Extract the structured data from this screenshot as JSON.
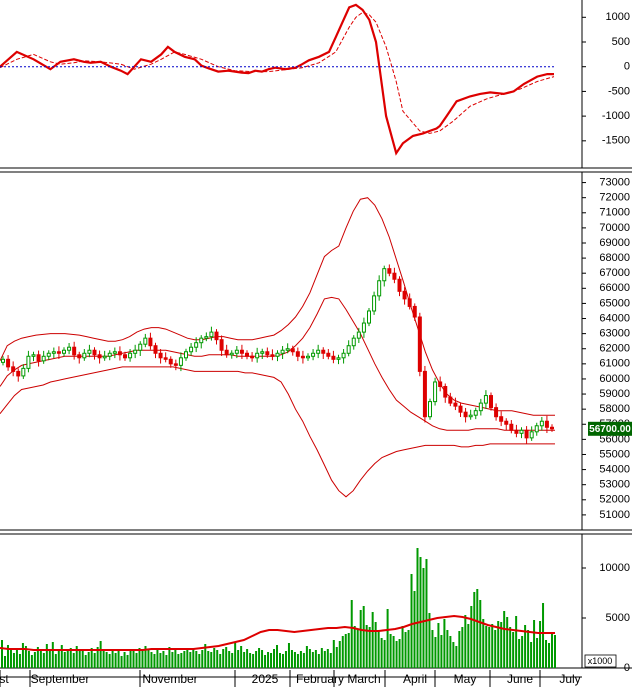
{
  "chart_data": [
    {
      "type": "line",
      "panel": "oscillator",
      "yticks": [
        1000,
        500,
        0,
        -500,
        -1000,
        -1500
      ],
      "ylim": [
        -2050,
        1350
      ],
      "series": [
        {
          "color": "#dd0000",
          "style": "solid",
          "x": [
            0,
            5,
            10,
            15,
            18,
            22,
            25,
            27,
            30,
            33,
            36,
            38,
            42,
            45,
            48,
            50,
            52,
            55,
            58,
            60,
            62,
            65,
            68,
            70,
            72,
            74,
            76,
            78,
            80,
            82,
            85,
            88,
            90,
            92,
            95,
            98,
            100,
            102,
            104,
            106,
            108,
            110,
            112,
            115,
            118,
            120,
            123,
            126,
            128,
            130,
            131,
            133,
            136,
            140,
            143,
            146,
            150,
            153,
            156,
            160,
            163,
            165
          ],
          "y": [
            0,
            300,
            150,
            -50,
            100,
            150,
            100,
            80,
            100,
            0,
            -80,
            -150,
            150,
            100,
            250,
            400,
            300,
            200,
            150,
            20,
            -30,
            -100,
            -80,
            -100,
            -120,
            -130,
            -80,
            -100,
            -50,
            -20,
            -50,
            -20,
            50,
            130,
            200,
            300,
            600,
            900,
            1200,
            1250,
            1150,
            950,
            500,
            -1000,
            -1750,
            -1550,
            -1400,
            -1350,
            -1300,
            -1250,
            -1200,
            -1000,
            -700,
            -600,
            -550,
            -520,
            -550,
            -500,
            -350,
            -200,
            -150,
            -150
          ]
        },
        {
          "color": "#dd0000",
          "style": "dashed",
          "x": [
            0,
            5,
            10,
            15,
            18,
            22,
            25,
            30,
            36,
            40,
            45,
            48,
            52,
            55,
            60,
            65,
            70,
            75,
            80,
            85,
            90,
            95,
            100,
            104,
            106,
            108,
            110,
            112,
            115,
            118,
            120,
            125,
            128,
            131,
            135,
            140,
            145,
            150,
            155,
            160,
            165
          ],
          "y": [
            -20,
            150,
            250,
            100,
            50,
            80,
            120,
            100,
            50,
            -50,
            50,
            150,
            300,
            250,
            150,
            0,
            -80,
            -100,
            -100,
            -60,
            -20,
            80,
            300,
            800,
            1000,
            1100,
            1050,
            900,
            400,
            -300,
            -900,
            -1300,
            -1350,
            -1300,
            -1100,
            -800,
            -650,
            -550,
            -450,
            -300,
            -200
          ]
        },
        {
          "color": "#0000cc",
          "style": "dotted",
          "x": [
            0,
            165
          ],
          "y": [
            0,
            0
          ]
        }
      ]
    },
    {
      "type": "candlestick",
      "panel": "price",
      "yticks": [
        73000,
        72000,
        71000,
        70000,
        69000,
        68000,
        67000,
        66000,
        65000,
        64000,
        63000,
        62000,
        61000,
        60000,
        59000,
        58000,
        57000,
        56000,
        55000,
        54000,
        53000,
        52000,
        51000
      ],
      "ylim": [
        50000,
        73700
      ],
      "last_price_label": "56700.00",
      "last_price": 56700,
      "close": [
        61300,
        60800,
        60500,
        60200,
        60700,
        61500,
        61600,
        61200,
        61500,
        61700,
        61800,
        61700,
        61900,
        62100,
        61600,
        61400,
        61700,
        61900,
        61600,
        61400,
        61500,
        61700,
        61800,
        61600,
        61400,
        61700,
        61900,
        62300,
        62700,
        62200,
        61700,
        61400,
        61300,
        61000,
        60900,
        61400,
        61800,
        62100,
        62400,
        62700,
        62800,
        63100,
        62600,
        61900,
        61600,
        61700,
        61900,
        61700,
        61500,
        61400,
        61700,
        61800,
        61600,
        61500,
        61700,
        61900,
        62000,
        61800,
        61500,
        61400,
        61500,
        61700,
        61900,
        61700,
        61500,
        61300,
        61400,
        61700,
        62200,
        62700,
        63100,
        63700,
        64500,
        65500,
        66500,
        67300,
        67000,
        66600,
        65800,
        65300,
        64800,
        64100,
        60500,
        57500,
        58500,
        59800,
        59500,
        58800,
        58400,
        58200,
        57800,
        57500,
        57600,
        57900,
        58400,
        58900,
        58100,
        57500,
        57200,
        57000,
        56600,
        56400,
        56600,
        56100,
        56500,
        56900,
        57200,
        56800,
        56700
      ],
      "upper_band": [
        61200,
        62200,
        62500,
        62700,
        62800,
        62900,
        62950,
        63000,
        63000,
        63000,
        62950,
        62900,
        62800,
        62700,
        62600,
        62500,
        62500,
        62600,
        62800,
        63100,
        63300,
        63400,
        63400,
        63300,
        63100,
        62900,
        62700,
        62600,
        62600,
        62700,
        62800,
        62800,
        62700,
        62600,
        62600,
        62600,
        62700,
        62800,
        62900,
        63200,
        63600,
        64100,
        64800,
        65700,
        66900,
        68100,
        68500,
        68800,
        70000,
        71100,
        71900,
        72000,
        71500,
        70600,
        69400,
        67900,
        66400,
        64800,
        63300,
        61800,
        60600,
        59700,
        59000,
        58600,
        58400,
        58300,
        58200,
        58100,
        58000,
        57900,
        57900,
        57900,
        57800,
        57700,
        57600,
        57600,
        57600,
        57600
      ],
      "lower_band": [
        57700,
        58300,
        58900,
        59300,
        59400,
        59500,
        59600,
        59800,
        59900,
        60000,
        60100,
        60200,
        60300,
        60400,
        60500,
        60600,
        60700,
        60800,
        60800,
        60800,
        60800,
        60800,
        60800,
        60800,
        60800,
        60700,
        60600,
        60500,
        60500,
        60500,
        60500,
        60500,
        60500,
        60500,
        60400,
        60400,
        60300,
        60200,
        60100,
        59800,
        59000,
        58000,
        57200,
        56200,
        55300,
        54300,
        53300,
        52600,
        52200,
        52600,
        53300,
        53900,
        54400,
        54800,
        55000,
        55200,
        55300,
        55400,
        55500,
        55600,
        55600,
        55600,
        55600,
        55600,
        55500,
        55500,
        55600,
        55600,
        55700,
        55700,
        55700,
        55700,
        55700,
        55700,
        55700,
        55700,
        55700,
        55700
      ],
      "middle_band": [
        59500,
        60200,
        60600,
        60900,
        61000,
        61100,
        61200,
        61300,
        61400,
        61500,
        61500,
        61500,
        61500,
        61500,
        61500,
        61500,
        61600,
        61700,
        61800,
        61900,
        61900,
        61900,
        61900,
        61900,
        61800,
        61700,
        61600,
        61500,
        61500,
        61600,
        61600,
        61600,
        61600,
        61500,
        61500,
        61500,
        61500,
        61500,
        61500,
        61600,
        61800,
        62200,
        62700,
        63400,
        64300,
        65300,
        65400,
        65300,
        64600,
        63800,
        63000,
        62000,
        61000,
        60100,
        59300,
        58600,
        58200,
        57800,
        57500,
        57200,
        56900,
        56700,
        56600,
        56600,
        56600,
        56600,
        56700,
        56700,
        56700,
        56700,
        56600,
        56600,
        56600,
        56600,
        56600,
        56600,
        56600,
        56600
      ]
    },
    {
      "type": "bar",
      "panel": "volume",
      "yticks": [
        10000,
        5000,
        0
      ],
      "units_label": "x1000",
      "ylim": [
        0,
        13000
      ],
      "values": [
        2800,
        1200,
        2300,
        1800,
        1500,
        2000,
        1400,
        2500,
        2200,
        1700,
        1300,
        1600,
        2100,
        1800,
        1500,
        2400,
        1900,
        2600,
        1400,
        1800,
        2300,
        1600,
        1700,
        2000,
        1500,
        2200,
        1700,
        1800,
        1300,
        1600,
        2000,
        1500,
        2100,
        2700,
        1900,
        1600,
        1400,
        1800,
        1500,
        1700,
        1200,
        1600,
        1300,
        1900,
        1700,
        1500,
        2000,
        1700,
        2200,
        1900,
        1600,
        1400,
        1800,
        1500,
        1700,
        1300,
        2100,
        1600,
        1800,
        1400,
        1500,
        1700,
        2000,
        1600,
        1900,
        1700,
        1400,
        1800,
        2400,
        1700,
        1600,
        2000,
        1800,
        1400,
        1900,
        2100,
        1700,
        1500,
        2600,
        1800,
        2200,
        1600,
        1900,
        1500,
        1400,
        1700,
        2000,
        1800,
        1300,
        1600,
        1500,
        1900,
        2300,
        1500,
        1400,
        1700,
        2500,
        1800,
        1600,
        1400,
        1700,
        1500,
        2200,
        1900,
        1600,
        1800,
        1400,
        2000,
        1700,
        1900,
        1500,
        2800,
        2100,
        2700,
        3200,
        3400,
        3500,
        6800,
        4200,
        3900,
        5800,
        6200,
        4300,
        4100,
        5600,
        4600,
        3700,
        3000,
        2800,
        5900,
        3400,
        3200,
        2700,
        2900,
        4200,
        3600,
        3800,
        9400,
        7700,
        12000,
        11100,
        10000,
        10900,
        5500,
        3800,
        3100,
        4500,
        3300,
        4900,
        3800,
        3200,
        2600,
        2200,
        3700,
        4100,
        5300,
        4400,
        6200,
        7600,
        7900,
        6800,
        4900,
        4200,
        4100,
        4400,
        3800,
        4700,
        4600,
        5700,
        5100,
        4100,
        3600,
        5200,
        2900,
        3200,
        4300,
        3800,
        2600,
        4800,
        3000,
        4700,
        6500,
        2800,
        2500,
        3500,
        3300
      ],
      "ma": [
        2000,
        1900,
        1900,
        1900,
        1800,
        1800,
        1800,
        1800,
        1800,
        1800,
        1800,
        1800,
        1800,
        1800,
        1800,
        1800,
        1800,
        1800,
        1900,
        1900,
        1900,
        1900,
        1900,
        1900,
        2000,
        2100,
        2200,
        2400,
        2600,
        2800,
        3200,
        3600,
        3800,
        3800,
        3700,
        3600,
        3700,
        3800,
        3900,
        4000,
        4000,
        4100,
        4000,
        3800,
        3700,
        3700,
        3800,
        3900,
        4100,
        4400,
        4600,
        4800,
        5000,
        5100,
        5200,
        5100,
        4900,
        4600,
        4300,
        4100,
        3900,
        3800,
        3700,
        3600,
        3500,
        3500,
        3500
      ]
    }
  ],
  "x_axis": {
    "labels": [
      "st",
      "September",
      "November",
      "2025",
      "February",
      "March",
      "April",
      "May",
      "June",
      "July"
    ]
  }
}
